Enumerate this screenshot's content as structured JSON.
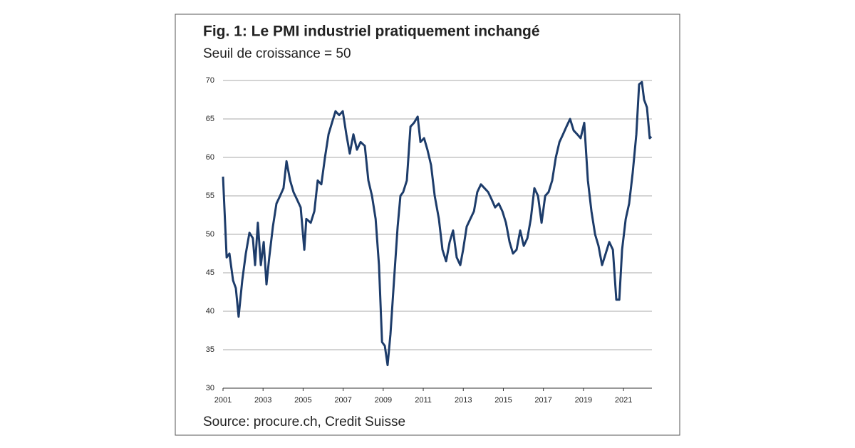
{
  "chart_data": {
    "type": "line",
    "title": "Fig. 1: Le PMI industriel pratiquement inchangé",
    "subtitle": "Seuil de croissance = 50",
    "source": "Source: procure.ch, Credit Suisse",
    "color": "#1d3c6a",
    "grid": true,
    "xlim": [
      2001,
      2022.42
    ],
    "xticks": [
      2001,
      2003,
      2005,
      2007,
      2009,
      2011,
      2013,
      2015,
      2017,
      2019,
      2021
    ],
    "ylim": [
      30,
      70
    ],
    "yticks": [
      30,
      35,
      40,
      45,
      50,
      55,
      60,
      65,
      70
    ],
    "x": [
      2001.0,
      2001.18,
      2001.32,
      2001.5,
      2001.64,
      2001.78,
      2001.96,
      2002.14,
      2002.32,
      2002.49,
      2002.6,
      2002.74,
      2002.89,
      2003.03,
      2003.17,
      2003.31,
      2003.49,
      2003.67,
      2003.85,
      2004.02,
      2004.17,
      2004.35,
      2004.52,
      2004.7,
      2004.88,
      2005.06,
      2005.16,
      2005.38,
      2005.56,
      2005.73,
      2005.91,
      2006.09,
      2006.27,
      2006.44,
      2006.62,
      2006.8,
      2006.98,
      2007.16,
      2007.33,
      2007.51,
      2007.69,
      2007.87,
      2008.08,
      2008.26,
      2008.44,
      2008.62,
      2008.79,
      2008.94,
      2009.08,
      2009.22,
      2009.36,
      2009.54,
      2009.72,
      2009.86,
      2010.0,
      2010.18,
      2010.36,
      2010.54,
      2010.72,
      2010.86,
      2011.04,
      2011.21,
      2011.39,
      2011.57,
      2011.78,
      2011.96,
      2012.14,
      2012.32,
      2012.49,
      2012.67,
      2012.85,
      2012.99,
      2013.17,
      2013.35,
      2013.53,
      2013.7,
      2013.88,
      2014.06,
      2014.24,
      2014.42,
      2014.59,
      2014.77,
      2014.95,
      2015.13,
      2015.31,
      2015.48,
      2015.66,
      2015.84,
      2016.02,
      2016.2,
      2016.37,
      2016.55,
      2016.73,
      2016.91,
      2017.09,
      2017.26,
      2017.44,
      2017.62,
      2017.8,
      2017.98,
      2018.15,
      2018.33,
      2018.51,
      2018.69,
      2018.86,
      2019.04,
      2019.22,
      2019.4,
      2019.58,
      2019.75,
      2019.93,
      2020.11,
      2020.29,
      2020.47,
      2020.64,
      2020.79,
      2020.93,
      2021.11,
      2021.28,
      2021.46,
      2021.64,
      2021.78,
      2021.92,
      2022.03,
      2022.17,
      2022.31,
      2022.39
    ],
    "values": [
      57.5,
      47,
      47.5,
      44,
      43,
      39.3,
      44,
      47.5,
      50.2,
      49.5,
      46,
      51.5,
      46,
      49,
      43.5,
      47,
      51,
      54,
      55,
      56,
      59.5,
      57,
      55.5,
      54.5,
      53.5,
      48,
      52,
      51.5,
      53,
      57,
      56.5,
      60,
      63,
      64.5,
      66,
      65.5,
      66,
      63,
      60.5,
      63,
      61,
      62,
      61.5,
      57,
      55,
      52,
      46,
      36,
      35.5,
      33,
      37,
      44,
      51,
      55,
      55.5,
      57,
      64,
      64.5,
      65.3,
      62,
      62.5,
      61,
      59,
      55,
      52,
      48,
      46.5,
      49,
      50.5,
      47,
      46,
      48,
      51,
      52,
      53,
      55.5,
      56.5,
      56,
      55.5,
      54.5,
      53.5,
      54,
      53,
      51.5,
      49,
      47.5,
      48,
      50.5,
      48.5,
      49.5,
      52,
      56,
      55,
      51.5,
      55,
      55.5,
      57,
      60,
      62,
      63,
      64,
      65,
      63.5,
      63,
      62.5,
      64.5,
      57,
      53,
      50,
      48.5,
      46,
      47.5,
      49,
      48,
      41.5,
      41.5,
      48,
      52,
      54,
      58,
      63,
      69.5,
      69.8,
      67.5,
      66.5,
      62.5,
      62.7
    ]
  }
}
